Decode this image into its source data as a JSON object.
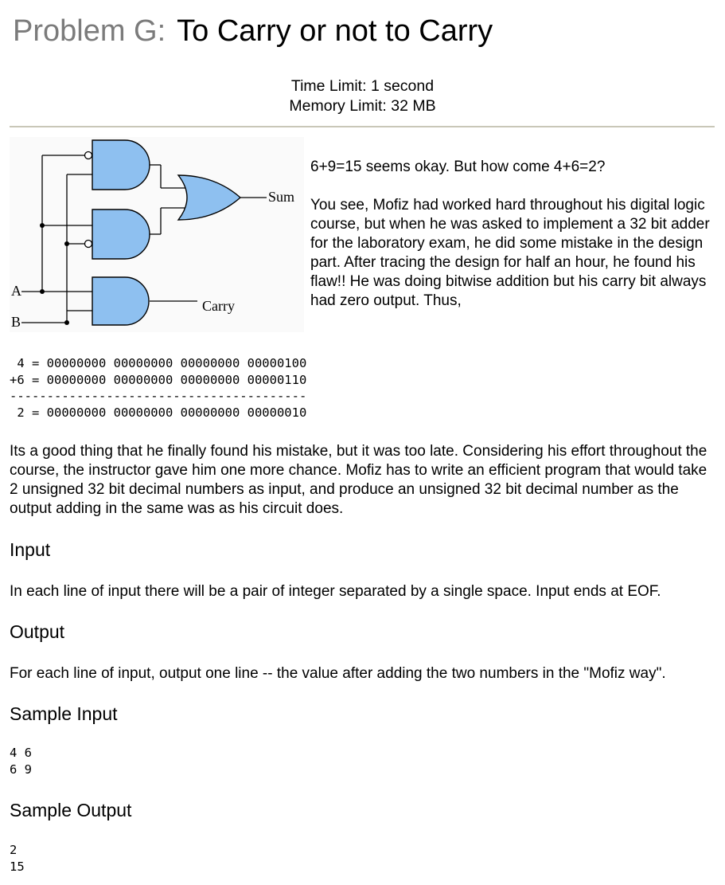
{
  "header": {
    "prefix": "Problem G:",
    "title": "To Carry or not to Carry",
    "time_limit": "Time Limit: 1 second",
    "memory_limit": "Memory Limit: 32 MB"
  },
  "diagram": {
    "sum_label": "Sum",
    "carry_label": "Carry",
    "input_a": "A",
    "input_b": "B",
    "gate_color": "#8ec0f0"
  },
  "intro": {
    "line1": "6+9=15 seems okay. But how come 4+6=2?",
    "paragraph": "You see, Mofiz had worked hard throughout his digital logic course, but when he was asked to implement a 32 bit adder for the laboratory exam, he did some mistake in the design part. After tracing the design for half an hour, he found his flaw!! He was doing bitwise addition but his carry bit always had zero output. Thus,"
  },
  "binary_example": " 4 = 00000000 00000000 00000000 00000100\n+6 = 00000000 00000000 00000000 00000110\n----------------------------------------\n 2 = 00000000 00000000 00000000 00000010",
  "story": "Its a good thing that he finally found his mistake, but it was too late. Considering his effort throughout the course, the instructor gave him one more chance. Mofiz has to write an efficient program that would take 2 unsigned 32 bit decimal numbers as input, and produce an unsigned 32 bit decimal number as the output adding in the same was as his circuit does.",
  "input_section": {
    "heading": "Input",
    "text": "In each line of input there will be a pair of integer separated by a single space. Input ends at EOF."
  },
  "output_section": {
    "heading": "Output",
    "text": "For each line of input, output one line -- the value after adding the two numbers in the \"Mofiz way\"."
  },
  "sample_input": {
    "heading": "Sample Input",
    "content": "4 6\n6 9"
  },
  "sample_output": {
    "heading": "Sample Output",
    "content": "2\n15"
  }
}
